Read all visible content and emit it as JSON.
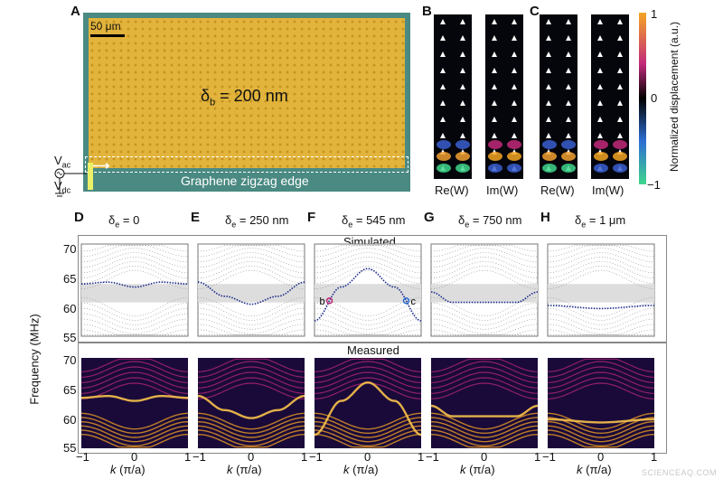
{
  "panels": {
    "A": {
      "label": "A",
      "scale": "50 μm",
      "delta_text": "δ",
      "delta_sub": "b",
      "delta_val": " = 200 nm",
      "vac": "V",
      "vac_sub": "ac",
      "vdc": "V",
      "vdc_sub": "dc",
      "edge_label": "Graphene zigzag edge"
    },
    "B": {
      "label": "B",
      "re": "Re(W)",
      "im": "Im(W)"
    },
    "C": {
      "label": "C",
      "re": "Re(W)",
      "im": "Im(W)"
    },
    "colorbar": {
      "title": "Normalized displacement (a.u.)",
      "ticks": [
        "1",
        "0",
        "−1"
      ],
      "colors": [
        "#f5a623",
        "#c2297a",
        "#000000",
        "#2d6fd3",
        "#3fd68c"
      ]
    },
    "bands": [
      {
        "label": "D",
        "delta": "δ",
        "sub": "e",
        "val": " = 0"
      },
      {
        "label": "E",
        "delta": "δ",
        "sub": "e",
        "val": " = 250 nm"
      },
      {
        "label": "F",
        "delta": "δ",
        "sub": "e",
        "val": " = 545 nm",
        "mark_b": "b",
        "mark_c": "c"
      },
      {
        "label": "G",
        "delta": "δ",
        "sub": "e",
        "val": " = 750 nm"
      },
      {
        "label": "H",
        "delta": "δ",
        "sub": "e",
        "val": " = 1 μm"
      }
    ],
    "sim_title": "Simulated",
    "meas_title": "Measured",
    "ylabel": "Frequency (MHz)",
    "yticks_sim": [
      "70",
      "65",
      "60",
      "55"
    ],
    "yticks_meas": [
      "70",
      "65",
      "60",
      "55"
    ],
    "xticks": [
      "−1",
      "0",
      "1"
    ],
    "xlabel_k": "k",
    "xlabel_unit": " (π/a)",
    "watermark": "SCIENCEAQ.COM"
  },
  "chart_data": {
    "type": "line",
    "xlabel": "k (π/a)",
    "ylabel": "Frequency (MHz)",
    "xlim": [
      -1,
      1
    ],
    "ylim": [
      55,
      70
    ],
    "gap": [
      60.5,
      63.5
    ],
    "series": [
      {
        "name": "δe = 0",
        "x": [
          -1,
          -0.5,
          0,
          0.5,
          1
        ],
        "y": [
          63.5,
          63.8,
          63.0,
          63.8,
          63.5
        ]
      },
      {
        "name": "δe = 250 nm",
        "x": [
          -1,
          -0.5,
          0,
          0.5,
          1
        ],
        "y": [
          63.8,
          61.5,
          60.2,
          61.5,
          63.8
        ]
      },
      {
        "name": "δe = 545 nm",
        "x": [
          -1,
          -0.5,
          0,
          0.5,
          1
        ],
        "y": [
          57.5,
          63,
          66,
          63,
          57.5
        ]
      },
      {
        "name": "δe = 750 nm",
        "x": [
          -1,
          -0.6,
          0.6,
          1
        ],
        "y": [
          62.2,
          60.5,
          60.5,
          62.2
        ]
      },
      {
        "name": "δe = 1 μm",
        "x": [
          -1,
          0,
          1
        ],
        "y": [
          60.0,
          59.5,
          60.0
        ]
      }
    ]
  }
}
